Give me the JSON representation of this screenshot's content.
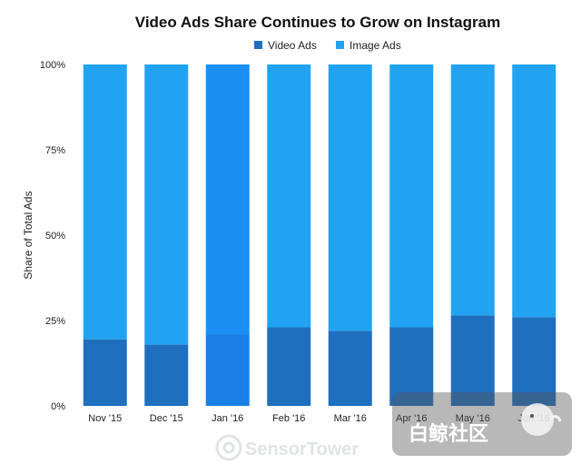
{
  "chart_data": {
    "type": "bar",
    "stacked": true,
    "title": "Video Ads Share Continues to Grow on Instagram",
    "ylabel": "Share of Total Ads",
    "xlabel": "",
    "categories": [
      "Nov '15",
      "Dec '15",
      "Jan '16",
      "Feb '16",
      "Mar '16",
      "Apr '16",
      "May '16",
      "Jun '16"
    ],
    "series": [
      {
        "name": "Video Ads",
        "values": [
          19.5,
          18,
          21,
          23,
          22,
          23,
          26.5,
          26
        ]
      },
      {
        "name": "Image Ads",
        "values": [
          80.5,
          82,
          79,
          77,
          78,
          77,
          73.5,
          74
        ]
      }
    ],
    "yticks": [
      "0%",
      "25%",
      "50%",
      "75%",
      "100%"
    ],
    "ylim": [
      0,
      100
    ],
    "legend_position": "top-center",
    "grid": false,
    "colors": {
      "video": "#1f6fbf",
      "image": "#21a3f1",
      "video_highlight": "#1a7fe6",
      "image_highlight": "#1b8ff2"
    },
    "highlighted_category": "Jan '16"
  },
  "watermark": {
    "text": "SensorTower",
    "badge_text": "白鲸社区"
  }
}
